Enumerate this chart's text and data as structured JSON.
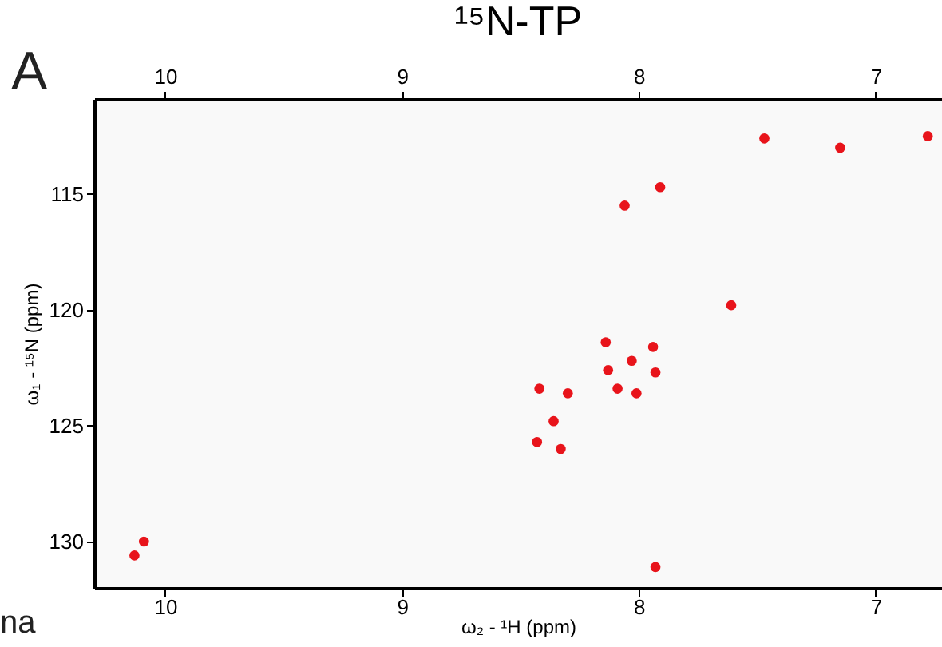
{
  "chart_data": {
    "type": "scatter",
    "title": "¹⁵N-TP",
    "xlabel": "ω₂ - ¹H  (ppm)",
    "ylabel": "ω₁ - ¹⁵N  (ppm)",
    "annotations": [
      "A",
      "na"
    ],
    "series": [
      {
        "color": "#e8141b",
        "x": [
          7.91,
          8.06,
          6.78,
          7.47,
          7.15,
          7.61,
          8.14,
          8.03,
          7.94,
          7.93,
          8.01,
          8.42,
          8.3,
          8.36,
          8.33,
          8.43,
          8.13,
          8.09,
          10.09,
          10.13,
          7.93
        ],
        "values": [
          114.7,
          115.5,
          112.5,
          112.6,
          113.0,
          119.8,
          121.4,
          122.2,
          121.6,
          122.7,
          123.6,
          123.4,
          123.6,
          124.8,
          126.0,
          125.7,
          122.6,
          123.4,
          130.0,
          130.6,
          131.1
        ]
      }
    ],
    "marker": "circle",
    "grid": false,
    "xlim": [
      10.3,
      6.72
    ],
    "xticks": [
      10,
      9,
      8,
      7
    ],
    "x2lim": [
      10.3,
      6.72
    ],
    "x2ticks": [
      10,
      9,
      8,
      7
    ],
    "ylim": [
      132.0,
      110.9
    ],
    "yticks": [
      115,
      120,
      125,
      130
    ]
  }
}
